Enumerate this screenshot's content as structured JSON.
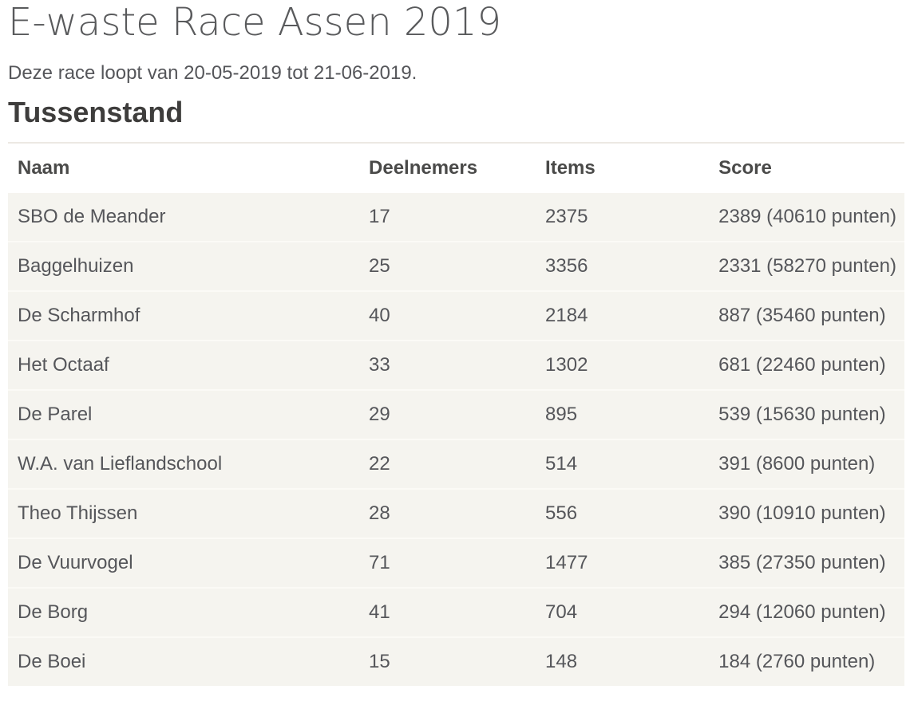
{
  "header": {
    "title": "E-waste Race Assen 2019",
    "subtitle": "Deze race loopt van 20-05-2019 tot 21-06-2019.",
    "section_heading": "Tussenstand"
  },
  "standings_table": {
    "columns": {
      "naam": "Naam",
      "deelnemers": "Deelnemers",
      "items": "Items",
      "score": "Score"
    },
    "rows": [
      {
        "naam": "SBO de Meander",
        "deelnemers": "17",
        "items": "2375",
        "score": "2389 (40610 punten)"
      },
      {
        "naam": "Baggelhuizen",
        "deelnemers": "25",
        "items": "3356",
        "score": "2331 (58270 punten)"
      },
      {
        "naam": "De Scharmhof",
        "deelnemers": "40",
        "items": "2184",
        "score": "887 (35460 punten)"
      },
      {
        "naam": "Het Octaaf",
        "deelnemers": "33",
        "items": "1302",
        "score": "681 (22460 punten)"
      },
      {
        "naam": "De Parel",
        "deelnemers": "29",
        "items": "895",
        "score": "539 (15630 punten)"
      },
      {
        "naam": "W.A. van Lieflandschool",
        "deelnemers": "22",
        "items": "514",
        "score": "391 (8600 punten)"
      },
      {
        "naam": "Theo Thijssen",
        "deelnemers": "28",
        "items": "556",
        "score": "390 (10910 punten)"
      },
      {
        "naam": "De Vuurvogel",
        "deelnemers": "71",
        "items": "1477",
        "score": "385 (27350 punten)"
      },
      {
        "naam": "De Borg",
        "deelnemers": "41",
        "items": "704",
        "score": "294 (12060 punten)"
      },
      {
        "naam": "De Boei",
        "deelnemers": "15",
        "items": "148",
        "score": "184 (2760 punten)"
      }
    ]
  },
  "colors": {
    "title_text": "#595a5c",
    "body_text": "#55565a",
    "section_heading_text": "#3e3d3c",
    "table_header_text": "#4a4a49",
    "row_background": "#f5f4ef",
    "row_separator": "#fbfaf6",
    "table_top_border": "#ece9e3",
    "page_background": "#ffffff"
  }
}
